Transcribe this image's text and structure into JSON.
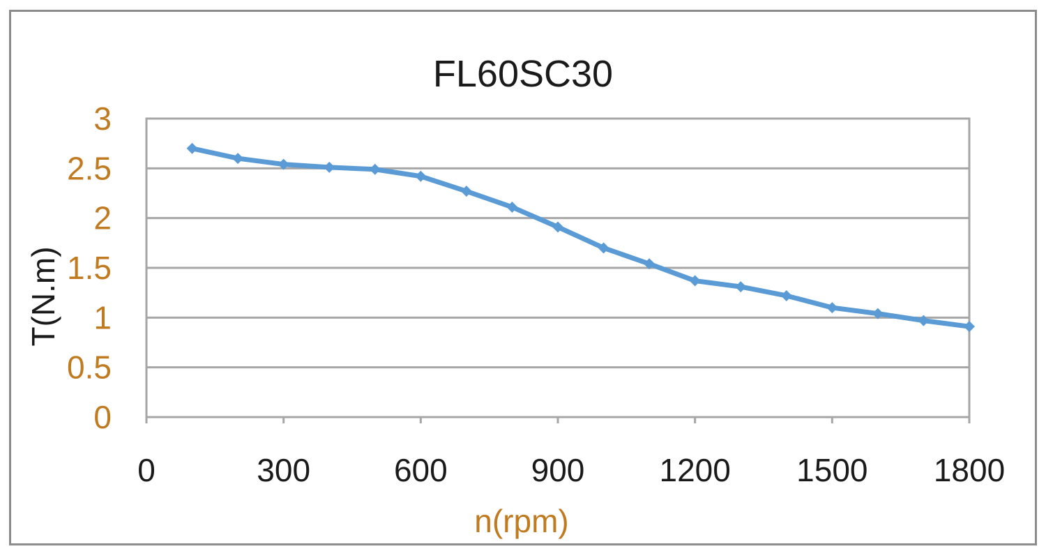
{
  "chart_data": {
    "type": "line",
    "title": "FL60SC30",
    "xlabel": "n(rpm)",
    "ylabel": "T(N.m)",
    "xlim": [
      0,
      1800
    ],
    "ylim": [
      0,
      3
    ],
    "xticks": [
      "0",
      "300",
      "600",
      "900",
      "1200",
      "1500",
      "1800"
    ],
    "yticks": [
      "3",
      "2.5",
      "2",
      "1.5",
      "1",
      "0.5",
      "0"
    ],
    "grid": true,
    "legend": "none",
    "series": [
      {
        "x": [
          100,
          200,
          300,
          400,
          500,
          600,
          700,
          800,
          900,
          1000,
          1100,
          1200,
          1300,
          1400,
          1500,
          1600,
          1700,
          1800
        ],
        "y": [
          2.7,
          2.6,
          2.54,
          2.51,
          2.49,
          2.42,
          2.27,
          2.11,
          1.91,
          1.7,
          1.54,
          1.37,
          1.31,
          1.22,
          1.1,
          1.04,
          0.97,
          0.91
        ],
        "color": "#5b9bd5"
      }
    ],
    "colors": {
      "axis_text": "#c07a20",
      "title_text": "#1a1a1a",
      "grid": "#a6a6a6",
      "frame": "#8c8c8c"
    }
  }
}
